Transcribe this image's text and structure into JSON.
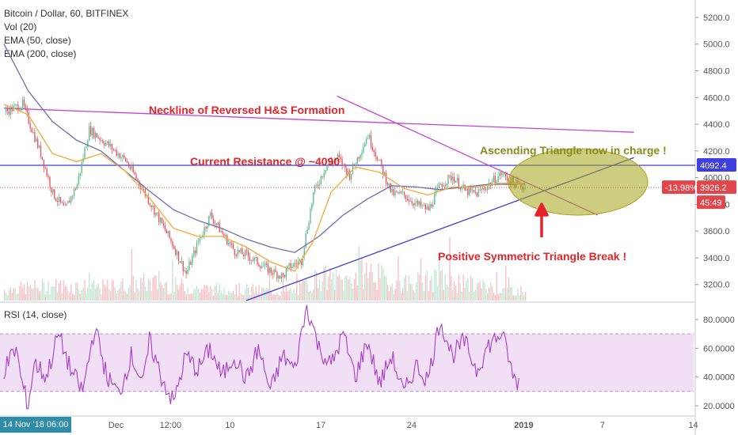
{
  "legend": {
    "title": "Bitcoin / Dollar, 60, BITFINEX",
    "vol": "Vol (20)",
    "ema50": "EMA (50, close)",
    "ema200": "EMA (200, close)"
  },
  "rsi_legend": "RSI (14, close)",
  "date_badge": "14 Nov '18   06:00",
  "colors": {
    "candle_up": "#53b987",
    "candle_down": "#eb4d5c",
    "ema50": "#f2a93b",
    "ema200": "#6b6fb0",
    "neckline": "#c243d6",
    "trendline": "#3b3bcf",
    "resistance": "#3f3fe0",
    "current_price": "#e0474c",
    "rsi": "#a63ec9",
    "annotation_red": "#e4242b",
    "annotation_olive": "#8a8a1e",
    "ellipse": "#a4a418"
  },
  "chart_data": [
    {
      "type": "candlestick",
      "title": "Bitcoin / Dollar, 60, BITFINEX",
      "ylim": [
        3080,
        5330
      ],
      "y_ticks": [
        "5200.0",
        "5000.0",
        "4800.0",
        "4600.0",
        "4400.0",
        "4200.0",
        "4000.0",
        "3800.0",
        "3600.0",
        "3400.0",
        "3200.0"
      ],
      "x_ticks": [
        "Dec",
        "12:00",
        "10",
        "17",
        "24",
        "2019",
        "7",
        "14"
      ],
      "price_path": [
        [
          0,
          4490
        ],
        [
          3,
          4550
        ],
        [
          6,
          4180
        ],
        [
          8,
          3880
        ],
        [
          10,
          3760
        ],
        [
          12,
          3950
        ],
        [
          14,
          4360
        ],
        [
          17,
          4250
        ],
        [
          20,
          4130
        ],
        [
          23,
          3900
        ],
        [
          26,
          3650
        ],
        [
          28,
          3480
        ],
        [
          30,
          3280
        ],
        [
          32,
          3520
        ],
        [
          34,
          3720
        ],
        [
          36,
          3580
        ],
        [
          38,
          3450
        ],
        [
          40,
          3420
        ],
        [
          42,
          3360
        ],
        [
          44,
          3300
        ],
        [
          46,
          3260
        ],
        [
          47,
          3330
        ],
        [
          49,
          3380
        ],
        [
          51,
          3880
        ],
        [
          53,
          4080
        ],
        [
          55,
          4150
        ],
        [
          57,
          4020
        ],
        [
          60,
          4320
        ],
        [
          62,
          4100
        ],
        [
          64,
          3880
        ],
        [
          66,
          3870
        ],
        [
          68,
          3800
        ],
        [
          70,
          3760
        ],
        [
          72,
          3950
        ],
        [
          74,
          4010
        ],
        [
          76,
          3900
        ],
        [
          78,
          3880
        ],
        [
          80,
          3950
        ],
        [
          82,
          4030
        ],
        [
          84,
          3960
        ],
        [
          86,
          3926
        ]
      ],
      "ema50_path": [
        [
          0,
          4550
        ],
        [
          4,
          4470
        ],
        [
          8,
          4180
        ],
        [
          12,
          4120
        ],
        [
          16,
          4180
        ],
        [
          20,
          4050
        ],
        [
          24,
          3850
        ],
        [
          28,
          3620
        ],
        [
          32,
          3560
        ],
        [
          36,
          3560
        ],
        [
          40,
          3480
        ],
        [
          44,
          3370
        ],
        [
          48,
          3300
        ],
        [
          51,
          3520
        ],
        [
          54,
          3890
        ],
        [
          58,
          4080
        ],
        [
          62,
          4040
        ],
        [
          66,
          3920
        ],
        [
          70,
          3870
        ],
        [
          74,
          3930
        ],
        [
          78,
          3930
        ],
        [
          82,
          3960
        ],
        [
          86,
          3950
        ]
      ],
      "ema200_path": [
        [
          0,
          5000
        ],
        [
          4,
          4650
        ],
        [
          8,
          4420
        ],
        [
          12,
          4280
        ],
        [
          16,
          4200
        ],
        [
          20,
          4050
        ],
        [
          24,
          3900
        ],
        [
          28,
          3760
        ],
        [
          32,
          3680
        ],
        [
          36,
          3620
        ],
        [
          40,
          3540
        ],
        [
          44,
          3480
        ],
        [
          48,
          3440
        ],
        [
          52,
          3560
        ],
        [
          56,
          3720
        ],
        [
          60,
          3840
        ],
        [
          64,
          3940
        ],
        [
          68,
          3930
        ],
        [
          72,
          3910
        ],
        [
          76,
          3930
        ],
        [
          80,
          3950
        ],
        [
          84,
          3950
        ],
        [
          86,
          3955
        ]
      ],
      "volume_path": [
        [
          0,
          18
        ],
        [
          8,
          25
        ],
        [
          16,
          22
        ],
        [
          24,
          30
        ],
        [
          32,
          20
        ],
        [
          40,
          18
        ],
        [
          48,
          15
        ],
        [
          52,
          40
        ],
        [
          56,
          32
        ],
        [
          60,
          50
        ],
        [
          64,
          28
        ],
        [
          72,
          35
        ],
        [
          78,
          25
        ],
        [
          82,
          20
        ],
        [
          86,
          15
        ]
      ],
      "current_resistance": 4092.4,
      "current_price": 3926.2,
      "price_change_label": "-13.98%",
      "price_label": "3926.2",
      "resistance_label": "4092.4",
      "countdown_label": "45:49",
      "annotations": {
        "neckline": "Neckline of Reversed H&S Formation",
        "resistance": "Current Resistance @ ~4090",
        "ascending": "Ascending Triangle now in charge !",
        "breakout": "Positive Symmetric Triangle Break !"
      },
      "lines": {
        "neckline": [
          [
            0,
            4520
          ],
          [
            104,
            4340
          ]
        ],
        "descending": [
          [
            55,
            4610
          ],
          [
            98,
            3720
          ]
        ],
        "ascending_support": [
          [
            40,
            3080
          ],
          [
            104,
            4150
          ]
        ]
      }
    },
    {
      "type": "line",
      "title": "RSI (14, close)",
      "ylim": [
        14,
        91
      ],
      "y_ticks": [
        "80.0000",
        "60.0000",
        "40.0000",
        "20.0000"
      ],
      "band": [
        30,
        70
      ],
      "rsi_path": [
        [
          0,
          45
        ],
        [
          2,
          60
        ],
        [
          3,
          35
        ],
        [
          4,
          20
        ],
        [
          5,
          50
        ],
        [
          7,
          40
        ],
        [
          9,
          70
        ],
        [
          11,
          45
        ],
        [
          13,
          30
        ],
        [
          15,
          75
        ],
        [
          17,
          40
        ],
        [
          19,
          28
        ],
        [
          21,
          55
        ],
        [
          23,
          35
        ],
        [
          24,
          65
        ],
        [
          26,
          40
        ],
        [
          28,
          22
        ],
        [
          30,
          55
        ],
        [
          32,
          45
        ],
        [
          34,
          60
        ],
        [
          36,
          40
        ],
        [
          38,
          55
        ],
        [
          40,
          38
        ],
        [
          42,
          60
        ],
        [
          44,
          30
        ],
        [
          46,
          55
        ],
        [
          48,
          45
        ],
        [
          50,
          90
        ],
        [
          52,
          60
        ],
        [
          54,
          48
        ],
        [
          56,
          70
        ],
        [
          58,
          40
        ],
        [
          60,
          65
        ],
        [
          62,
          35
        ],
        [
          64,
          55
        ],
        [
          66,
          28
        ],
        [
          68,
          48
        ],
        [
          70,
          38
        ],
        [
          72,
          80
        ],
        [
          74,
          55
        ],
        [
          76,
          65
        ],
        [
          78,
          45
        ],
        [
          80,
          62
        ],
        [
          82,
          70
        ],
        [
          83,
          60
        ],
        [
          84,
          40
        ],
        [
          85,
          36
        ]
      ]
    }
  ]
}
